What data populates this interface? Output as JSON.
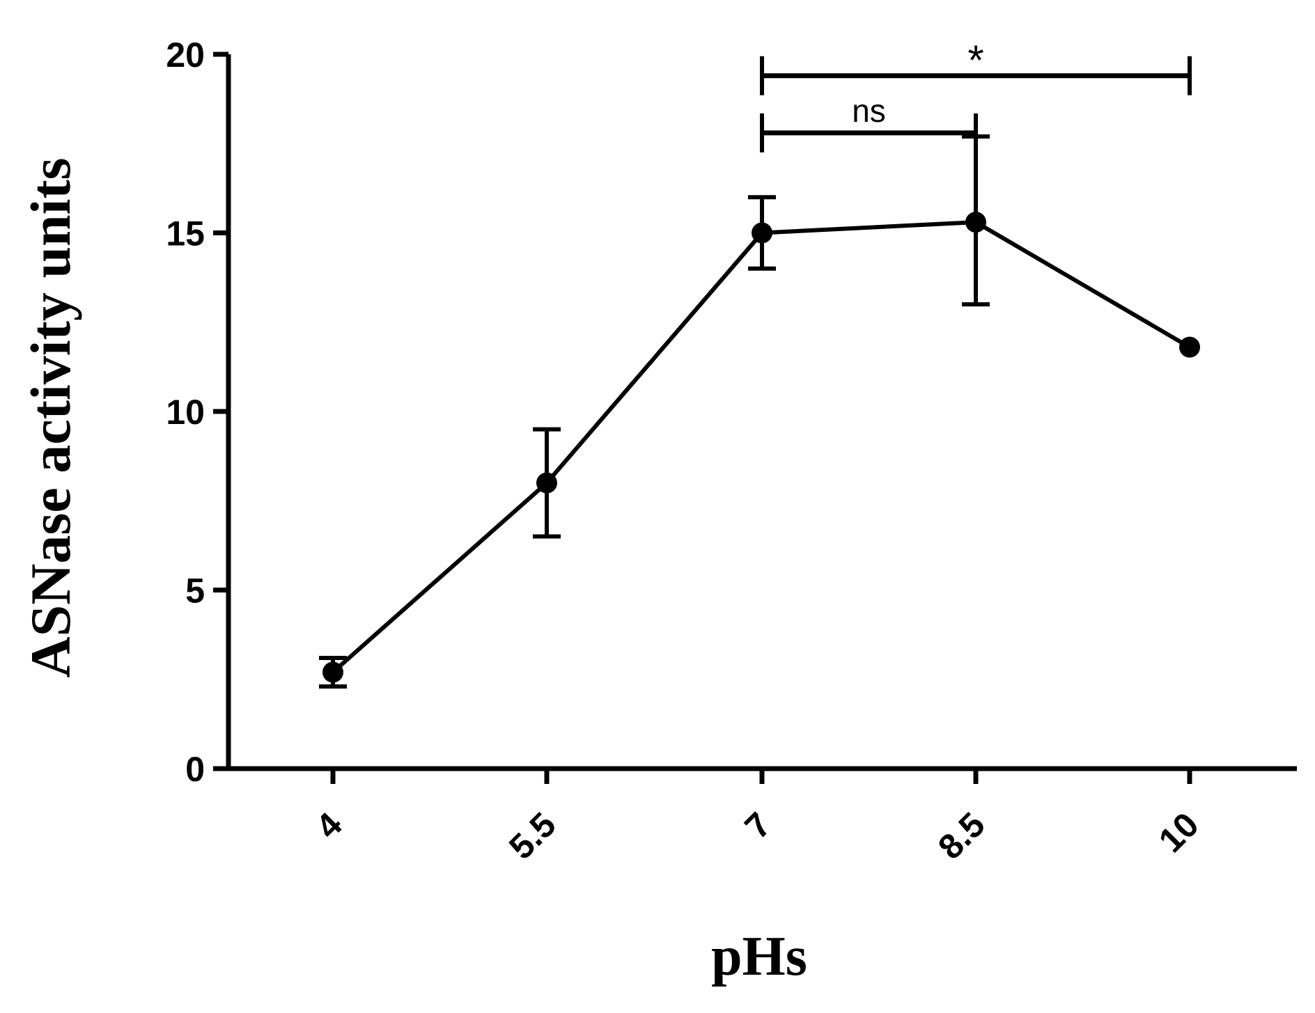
{
  "chart_data": {
    "type": "line",
    "xlabel": "pHs",
    "ylabel": "ASNase activity units",
    "ylim": [
      0,
      20
    ],
    "yticks": [
      "0",
      "5",
      "10",
      "15",
      "20"
    ],
    "categories": [
      "4",
      "5.5",
      "7",
      "8.5",
      "10"
    ],
    "series": [
      {
        "values": [
          2.7,
          8.0,
          15.0,
          15.3,
          11.8
        ],
        "error_low": [
          2.3,
          6.5,
          14.0,
          13.0,
          11.8
        ],
        "error_high": [
          3.1,
          9.5,
          16.0,
          17.7,
          11.8
        ]
      }
    ],
    "annotations": [
      {
        "from": "7",
        "to": "10",
        "label": "*",
        "level": 19.4
      },
      {
        "from": "7",
        "to": "8.5",
        "label": "ns",
        "level": 17.8
      }
    ],
    "grid": false,
    "color": "#000000"
  }
}
